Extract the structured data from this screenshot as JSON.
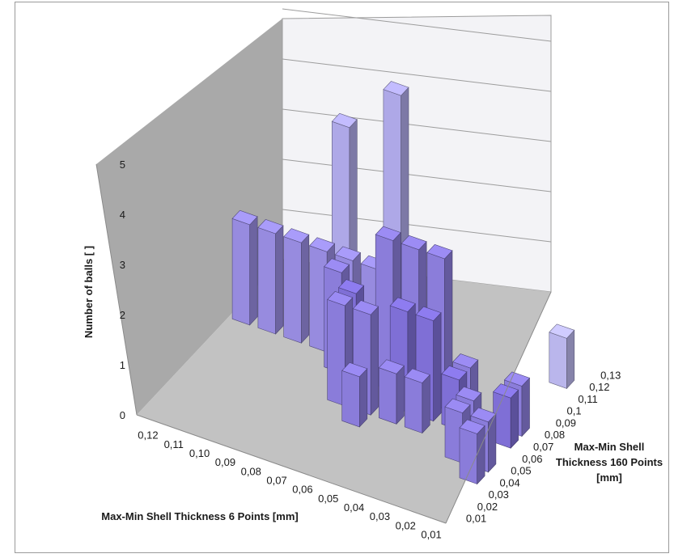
{
  "chart_data": {
    "type": "bar3d",
    "title": "",
    "zlabel": "Number of balls [ ]",
    "xlabel": "Max-Min Shell Thickness 6 Points [mm]",
    "ylabel_lines": [
      "Max-Min Shell",
      "Thickness 160 Points",
      "[mm]"
    ],
    "z_ticks": [
      "0",
      "1",
      "2",
      "3",
      "4",
      "5"
    ],
    "zlim": [
      0,
      5
    ],
    "x_categories": [
      "0,12",
      "0,11",
      "0,10",
      "0,09",
      "0,08",
      "0,07",
      "0,06",
      "0,05",
      "0,04",
      "0,03",
      "0,02",
      "0,01"
    ],
    "y_categories": [
      "0,01",
      "0,02",
      "0,03",
      "0,04",
      "0,05",
      "0,06",
      "0,07",
      "0,08",
      "0,09",
      "0,1",
      "0,11",
      "0,12",
      "0,13"
    ],
    "grid": true,
    "bar_colors": [
      "#c6c4f0",
      "#7f6fd6"
    ],
    "wall_colors": {
      "side": "#a9a9a9",
      "back": "#f3f3f6",
      "floor": "#c2c2c2"
    },
    "bars": [
      {
        "x": "0,12",
        "y": "0,10",
        "value": 2
      },
      {
        "x": "0,12",
        "y": "0,09",
        "value": 2
      },
      {
        "x": "0,11",
        "y": "0,10",
        "value": 3
      },
      {
        "x": "0,11",
        "y": "0,09",
        "value": 2
      },
      {
        "x": "0,10",
        "y": "0,10",
        "value": 2
      },
      {
        "x": "0,10",
        "y": "0,09",
        "value": 2
      },
      {
        "x": "0,09",
        "y": "0,11",
        "value": 4
      },
      {
        "x": "0,09",
        "y": "0,10",
        "value": 3
      },
      {
        "x": "0,09",
        "y": "0,09",
        "value": 2
      },
      {
        "x": "0,08",
        "y": "0,10",
        "value": 2
      },
      {
        "x": "0,08",
        "y": "0,09",
        "value": 2
      },
      {
        "x": "0,08",
        "y": "0,08",
        "value": 2
      },
      {
        "x": "0,07",
        "y": "0,11",
        "value": 5
      },
      {
        "x": "0,07",
        "y": "0,10",
        "value": 4
      },
      {
        "x": "0,07",
        "y": "0,09",
        "value": 2
      },
      {
        "x": "0,07",
        "y": "0,07",
        "value": 2
      },
      {
        "x": "0,07",
        "y": "0,06",
        "value": 2
      },
      {
        "x": "0,06",
        "y": "0,10",
        "value": 3
      },
      {
        "x": "0,06",
        "y": "0,08",
        "value": 3
      },
      {
        "x": "0,06",
        "y": "0,06",
        "value": 2
      },
      {
        "x": "0,06",
        "y": "0,05",
        "value": 1
      },
      {
        "x": "0,05",
        "y": "0,10",
        "value": 3
      },
      {
        "x": "0,05",
        "y": "0,08",
        "value": 3
      },
      {
        "x": "0,05",
        "y": "0,07",
        "value": 2
      },
      {
        "x": "0,05",
        "y": "0,06",
        "value": 1
      },
      {
        "x": "0,04",
        "y": "0,10",
        "value": 3
      },
      {
        "x": "0,04",
        "y": "0,08",
        "value": 3
      },
      {
        "x": "0,04",
        "y": "0,07",
        "value": 2
      },
      {
        "x": "0,04",
        "y": "0,06",
        "value": 1
      },
      {
        "x": "0,03",
        "y": "0,08",
        "value": 1
      },
      {
        "x": "0,03",
        "y": "0,07",
        "value": 1
      },
      {
        "x": "0,02",
        "y": "0,06",
        "value": 1
      },
      {
        "x": "0,02",
        "y": "0,05",
        "value": 1
      },
      {
        "x": "0,01",
        "y": "0,12",
        "value": 1
      },
      {
        "x": "0,01",
        "y": "0,10",
        "value": 1
      },
      {
        "x": "0,01",
        "y": "0,08",
        "value": 1
      },
      {
        "x": "0,01",
        "y": "0,07",
        "value": 1
      },
      {
        "x": "0,01",
        "y": "0,05",
        "value": 1
      },
      {
        "x": "0,01",
        "y": "0,04",
        "value": 1
      }
    ]
  }
}
